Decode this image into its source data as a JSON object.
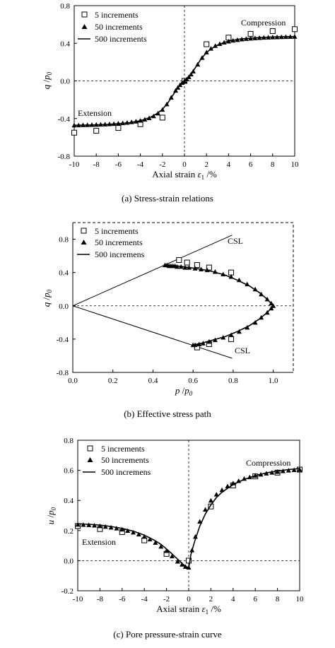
{
  "chart_data": [
    {
      "type": "scatter",
      "caption": "(a) Stress-strain relations",
      "xlabel_text": "Axial strain ",
      "xlabel_symbol": "ε",
      "xlabel_sub": "1",
      "xlabel_unit": " /%",
      "ylabel_q": "q",
      "ylabel_sep": " /",
      "ylabel_p": "p",
      "ylabel_sub": "0",
      "xlim": [
        -10,
        10
      ],
      "ylim": [
        -0.8,
        0.8
      ],
      "xticks": [
        -10,
        -8,
        -6,
        -4,
        -2,
        0,
        2,
        4,
        6,
        8,
        10
      ],
      "xtick_labels": [
        "-10",
        "-8",
        "-6",
        "-4",
        "-2",
        "0",
        "2",
        "4",
        "6",
        "8",
        "10"
      ],
      "yticks": [
        -0.8,
        -0.4,
        0.0,
        0.4,
        0.8
      ],
      "ytick_labels": [
        "-0.8",
        "-0.4",
        "0.0",
        "0.4",
        "0.8"
      ],
      "legend": [
        "5 increments",
        "50 increments",
        "500 increments"
      ],
      "annotations": [
        "Compression",
        "Extension"
      ],
      "series": [
        {
          "name": "5 increments",
          "marker": "open-square",
          "x": [
            -10,
            -8,
            -6,
            -4,
            -2,
            0,
            2,
            4,
            6,
            8,
            10
          ],
          "y": [
            -0.55,
            -0.53,
            -0.5,
            -0.46,
            -0.39,
            0.0,
            0.39,
            0.46,
            0.5,
            0.53,
            0.55
          ]
        },
        {
          "name": "50 increments",
          "marker": "filled-triangle",
          "x": [
            -10,
            -9.6,
            -9.2,
            -8.8,
            -8.4,
            -8,
            -7.6,
            -7.2,
            -6.8,
            -6.4,
            -6,
            -5.6,
            -5.2,
            -4.8,
            -4.4,
            -4,
            -3.6,
            -3.2,
            -2.8,
            -2.4,
            -2,
            -1.6,
            -1.2,
            -0.8,
            -0.6,
            -0.4,
            -0.2,
            0,
            0.2,
            0.4,
            0.6,
            0.8,
            1.2,
            1.6,
            2,
            2.4,
            2.8,
            3.2,
            3.6,
            4,
            4.4,
            4.8,
            5.2,
            5.6,
            6,
            6.4,
            6.8,
            7.2,
            7.6,
            8,
            8.4,
            8.8,
            9.2,
            9.6,
            10
          ],
          "y": [
            -0.471,
            -0.47,
            -0.469,
            -0.468,
            -0.466,
            -0.465,
            -0.463,
            -0.461,
            -0.458,
            -0.455,
            -0.452,
            -0.448,
            -0.443,
            -0.437,
            -0.43,
            -0.421,
            -0.409,
            -0.394,
            -0.374,
            -0.345,
            -0.305,
            -0.247,
            -0.176,
            -0.102,
            -0.07,
            -0.042,
            -0.019,
            0.0,
            0.019,
            0.042,
            0.07,
            0.102,
            0.176,
            0.247,
            0.305,
            0.345,
            0.374,
            0.394,
            0.409,
            0.421,
            0.43,
            0.437,
            0.443,
            0.448,
            0.452,
            0.455,
            0.458,
            0.461,
            0.463,
            0.465,
            0.466,
            0.468,
            0.469,
            0.47,
            0.471
          ]
        },
        {
          "name": "500 increments",
          "marker": "line",
          "x": [
            -10,
            -9,
            -8,
            -7,
            -6,
            -5,
            -4,
            -3.5,
            -3,
            -2.5,
            -2,
            -1.5,
            -1,
            -0.5,
            0,
            0.5,
            1,
            1.5,
            2,
            2.5,
            3,
            3.5,
            4,
            5,
            6,
            7,
            8,
            9,
            10
          ],
          "y": [
            -0.472,
            -0.47,
            -0.467,
            -0.463,
            -0.455,
            -0.445,
            -0.423,
            -0.405,
            -0.381,
            -0.347,
            -0.303,
            -0.232,
            -0.143,
            -0.055,
            0.0,
            0.055,
            0.143,
            0.232,
            0.303,
            0.347,
            0.381,
            0.405,
            0.423,
            0.445,
            0.455,
            0.463,
            0.467,
            0.47,
            0.472
          ]
        }
      ]
    },
    {
      "type": "scatter",
      "caption": "(b) Effective stress path",
      "xlabel_p": "p",
      "xlabel_sep": " /",
      "xlabel_p0": "p",
      "xlabel_sub": "0",
      "ylabel_q": "q",
      "ylabel_sep": " /",
      "ylabel_p": "p",
      "ylabel_sub": "0",
      "xlim": [
        0,
        1.1
      ],
      "ylim": [
        -0.8,
        1.0
      ],
      "xticks": [
        0.0,
        0.2,
        0.4,
        0.6,
        0.8,
        1.0
      ],
      "xtick_labels": [
        "0.0",
        "0.2",
        "0.4",
        "0.6",
        "0.8",
        "1.0"
      ],
      "yticks": [
        -0.8,
        -0.4,
        0.0,
        0.4,
        0.8
      ],
      "ytick_labels": [
        "-0.8",
        "-0.4",
        "0.0",
        "0.4",
        "0.8"
      ],
      "legend": [
        "5 increments",
        "50 increments",
        "500 incremens"
      ],
      "annotations": [
        "CSL",
        "CSL"
      ],
      "csl_lines": [
        {
          "x": [
            0,
            0.795
          ],
          "y": [
            0,
            0.85
          ]
        },
        {
          "x": [
            0,
            0.795
          ],
          "y": [
            0,
            -0.63
          ]
        }
      ],
      "series": [
        {
          "name": "5 increments",
          "marker": "open-square",
          "x": [
            0.53,
            0.57,
            0.62,
            0.68,
            0.79,
            0.62,
            0.68,
            0.79
          ],
          "y": [
            0.55,
            0.52,
            0.49,
            0.46,
            0.4,
            -0.5,
            -0.46,
            -0.4
          ]
        },
        {
          "name": "50 increments",
          "marker": "filled-triangle",
          "x": [
            0.46,
            0.47,
            0.48,
            0.49,
            0.5,
            0.51,
            0.52,
            0.54,
            0.56,
            0.58,
            0.61,
            0.64,
            0.67,
            0.71,
            0.75,
            0.79,
            0.83,
            0.87,
            0.91,
            0.94,
            0.97,
            0.99,
            1.0,
            0.99,
            0.97,
            0.94,
            0.91,
            0.87,
            0.83,
            0.79,
            0.75,
            0.71,
            0.68,
            0.65,
            0.63,
            0.61,
            0.6
          ],
          "y": [
            0.49,
            0.49,
            0.48,
            0.48,
            0.48,
            0.48,
            0.47,
            0.47,
            0.46,
            0.46,
            0.45,
            0.44,
            0.43,
            0.41,
            0.38,
            0.35,
            0.31,
            0.26,
            0.2,
            0.14,
            0.08,
            0.03,
            0.0,
            -0.03,
            -0.08,
            -0.14,
            -0.2,
            -0.26,
            -0.31,
            -0.35,
            -0.38,
            -0.41,
            -0.43,
            -0.45,
            -0.46,
            -0.47,
            -0.47
          ]
        },
        {
          "name": "500 incremens",
          "marker": "line",
          "x": [
            0.46,
            0.52,
            0.58,
            0.64,
            0.7,
            0.76,
            0.82,
            0.88,
            0.93,
            0.97,
            1.0,
            0.97,
            0.93,
            0.88,
            0.82,
            0.76,
            0.7,
            0.64,
            0.6
          ],
          "y": [
            0.49,
            0.48,
            0.46,
            0.44,
            0.41,
            0.37,
            0.31,
            0.24,
            0.16,
            0.08,
            0.0,
            -0.08,
            -0.16,
            -0.24,
            -0.31,
            -0.37,
            -0.41,
            -0.45,
            -0.47
          ]
        }
      ]
    },
    {
      "type": "scatter",
      "caption": "(c) Pore pressure-strain curve",
      "xlabel_text": "Axial strain ",
      "xlabel_symbol": "ε",
      "xlabel_sub": "1",
      "xlabel_unit": " /%",
      "ylabel_q": "u",
      "ylabel_sep": " /",
      "ylabel_p": "p",
      "ylabel_sub": "0",
      "xlim": [
        -10,
        10
      ],
      "ylim": [
        -0.2,
        0.8
      ],
      "xticks": [
        -10,
        -8,
        -6,
        -4,
        -2,
        0,
        2,
        4,
        6,
        8,
        10
      ],
      "xtick_labels": [
        "-10",
        "-8",
        "-6",
        "-4",
        "-2",
        "0",
        "2",
        "4",
        "6",
        "8",
        "10"
      ],
      "yticks": [
        -0.2,
        0.0,
        0.2,
        0.4,
        0.6,
        0.8
      ],
      "ytick_labels": [
        "-0.2",
        "0.0",
        "0.2",
        "0.4",
        "0.6",
        "0.8"
      ],
      "legend": [
        "5 increments",
        "50 increments",
        "500 incremens"
      ],
      "annotations": [
        "Compression",
        "Extension"
      ],
      "series": [
        {
          "name": "5 increments",
          "marker": "open-square",
          "x": [
            -10,
            -8,
            -6,
            -4,
            -2,
            0,
            2,
            4,
            6,
            8,
            10
          ],
          "y": [
            0.23,
            0.21,
            0.19,
            0.135,
            0.045,
            0.0,
            0.36,
            0.5,
            0.56,
            0.585,
            0.605
          ]
        },
        {
          "name": "50 increments",
          "marker": "filled-triangle",
          "x": [
            -10,
            -9.5,
            -9,
            -8.5,
            -8,
            -7.5,
            -7,
            -6.5,
            -6,
            -5.5,
            -5,
            -4.5,
            -4,
            -3.5,
            -3,
            -2.5,
            -2,
            -1.5,
            -1,
            -0.6,
            -0.3,
            0,
            0.3,
            0.6,
            1,
            1.5,
            2,
            2.5,
            3,
            3.5,
            4,
            4.5,
            5,
            5.5,
            6,
            6.5,
            7,
            7.5,
            8,
            8.5,
            9,
            9.5,
            10
          ],
          "y": [
            0.24,
            0.239,
            0.237,
            0.234,
            0.23,
            0.226,
            0.221,
            0.215,
            0.208,
            0.199,
            0.188,
            0.175,
            0.16,
            0.142,
            0.12,
            0.094,
            0.065,
            0.03,
            -0.005,
            -0.025,
            -0.04,
            -0.045,
            0.07,
            0.16,
            0.26,
            0.34,
            0.4,
            0.44,
            0.47,
            0.495,
            0.515,
            0.53,
            0.545,
            0.555,
            0.565,
            0.573,
            0.58,
            0.586,
            0.591,
            0.596,
            0.6,
            0.603,
            0.606
          ]
        },
        {
          "name": "500 incremens",
          "marker": "line",
          "x": [
            -10,
            -9,
            -8,
            -7,
            -6,
            -5,
            -4,
            -3,
            -2.5,
            -2,
            -1.5,
            -1,
            -0.5,
            0,
            0.2,
            0.5,
            1,
            1.5,
            2,
            2.5,
            3,
            4,
            5,
            6,
            7,
            8,
            9,
            10
          ],
          "y": [
            0.245,
            0.242,
            0.236,
            0.227,
            0.214,
            0.196,
            0.17,
            0.132,
            0.108,
            0.078,
            0.045,
            0.01,
            -0.025,
            -0.05,
            0.04,
            0.12,
            0.23,
            0.31,
            0.37,
            0.42,
            0.455,
            0.505,
            0.54,
            0.565,
            0.583,
            0.596,
            0.605,
            0.612
          ]
        }
      ]
    }
  ]
}
